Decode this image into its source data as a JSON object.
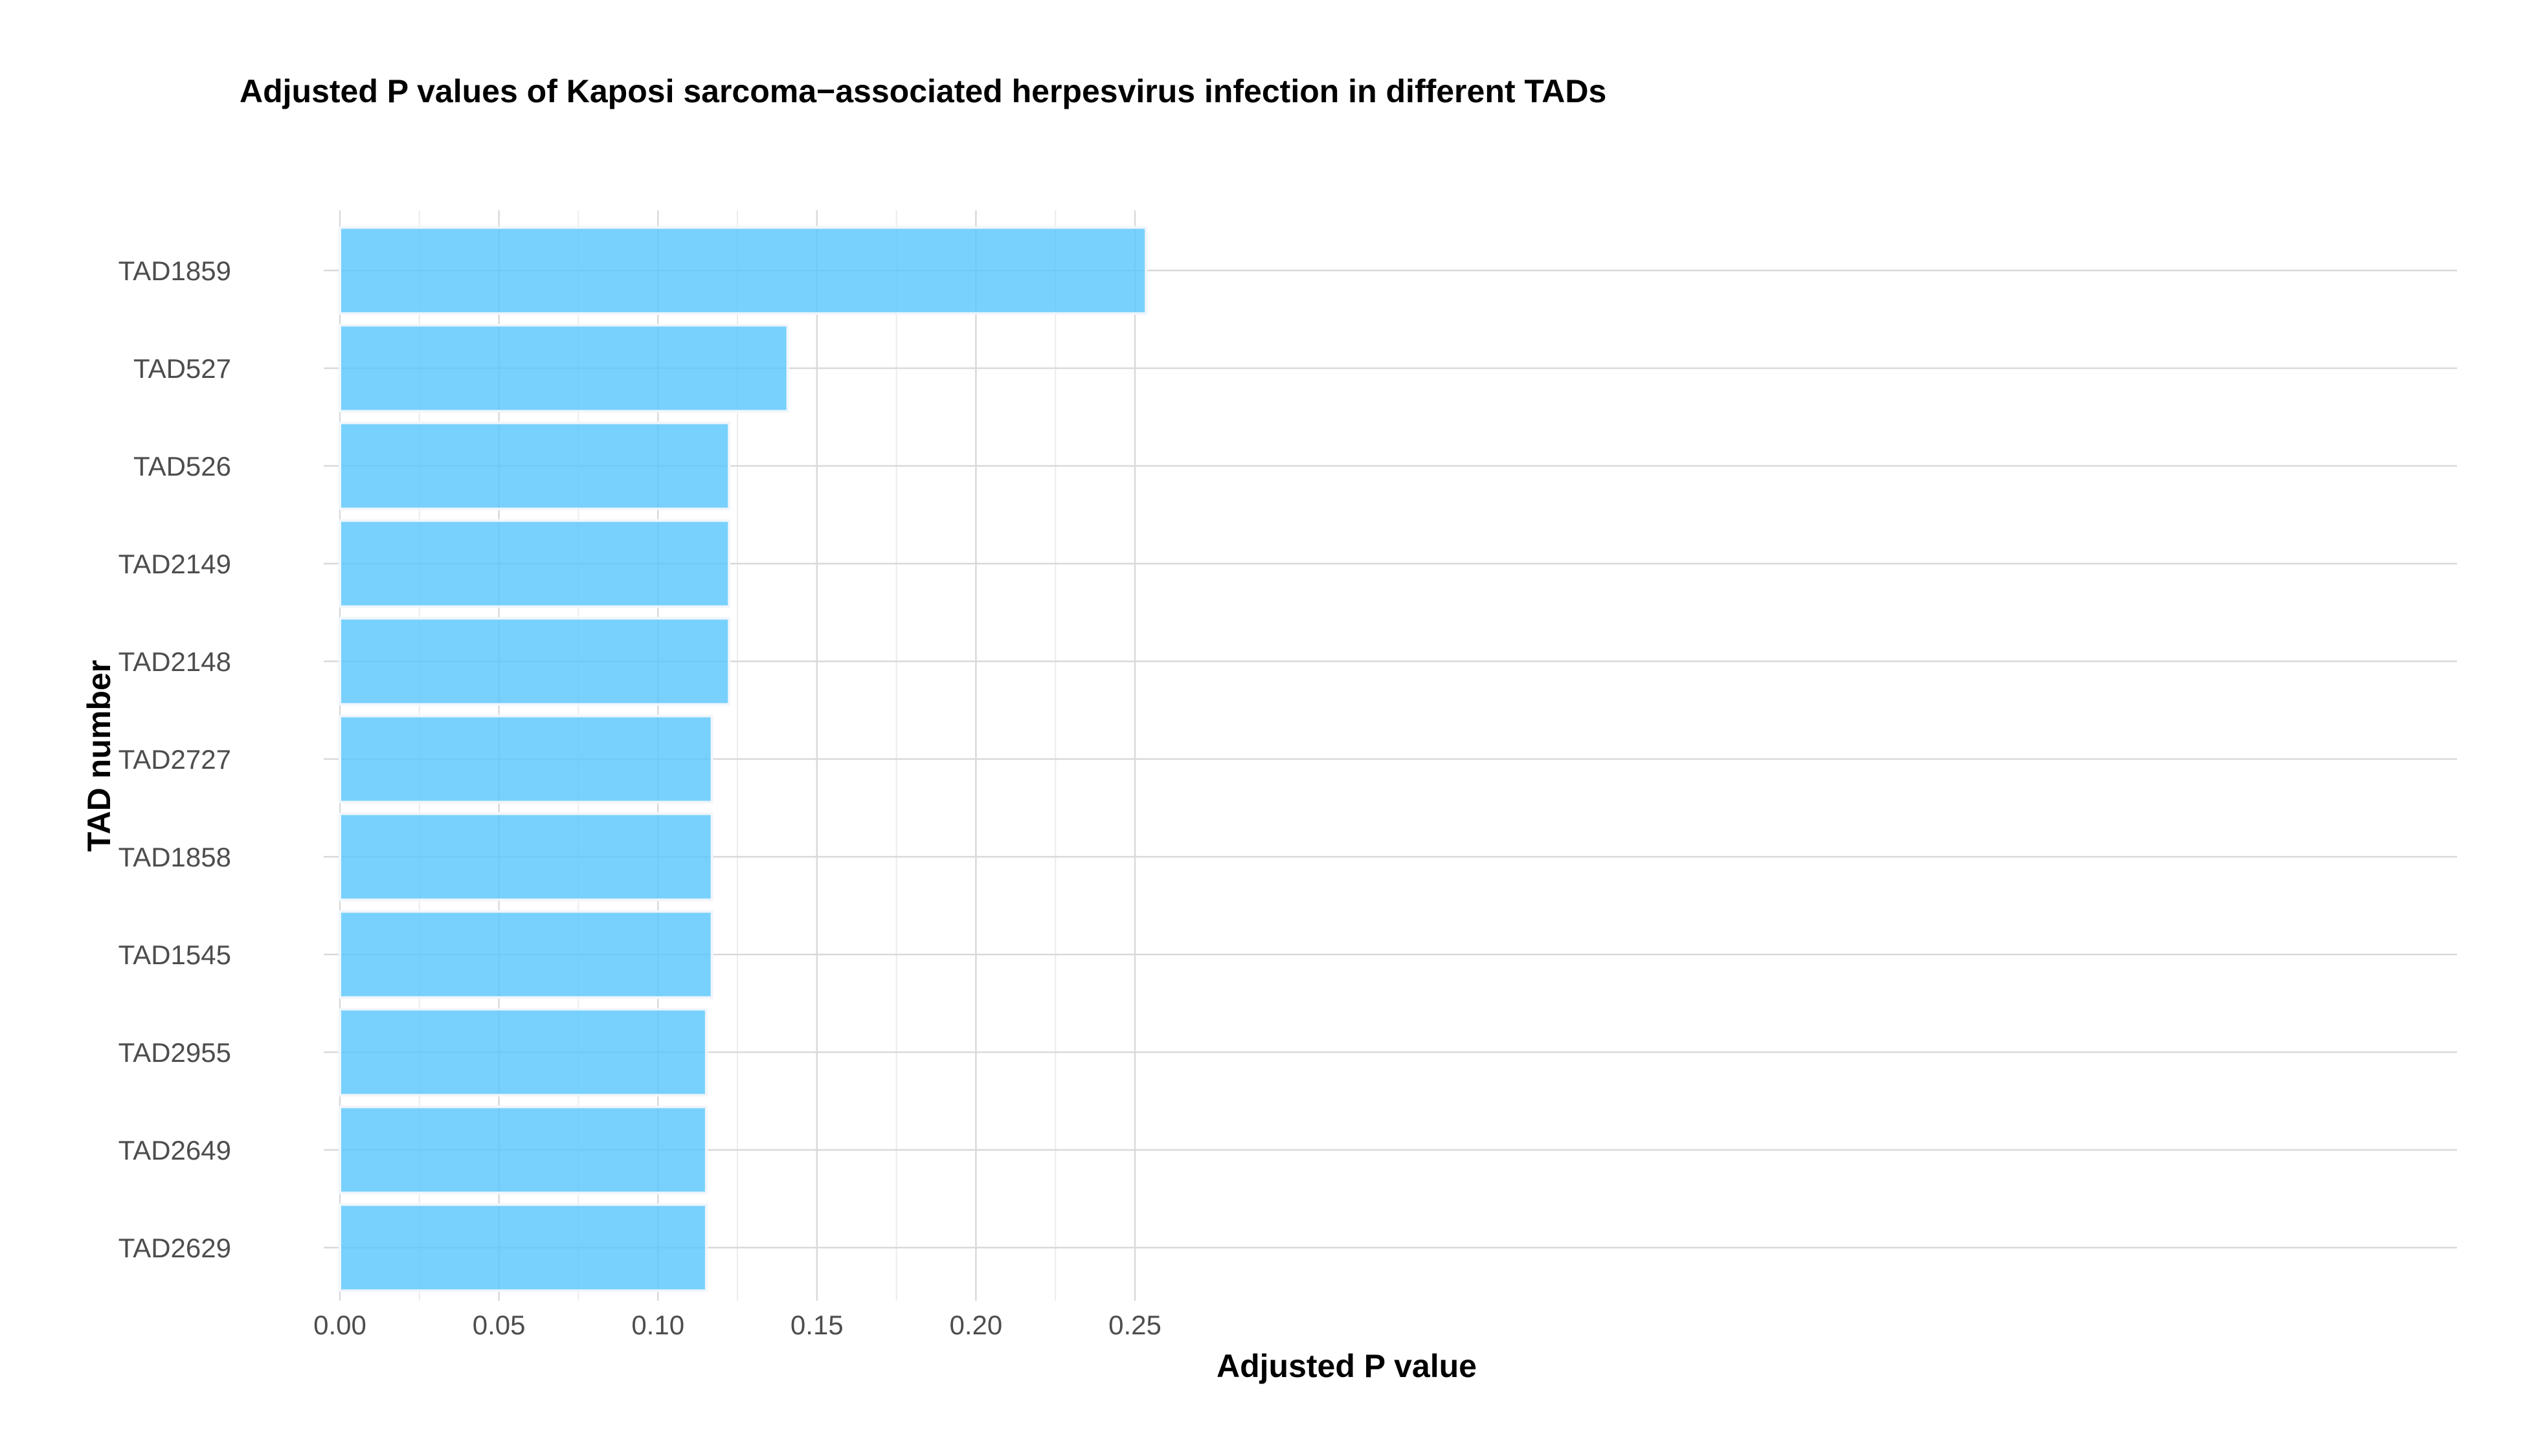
{
  "chart_data": {
    "type": "bar",
    "orientation": "horizontal",
    "title": "Adjusted P values of Kaposi sarcoma−associated herpesvirus infection in different TADs",
    "xlabel": "Adjusted P value",
    "ylabel": "TAD number",
    "categories": [
      "TAD1859",
      "TAD527",
      "TAD526",
      "TAD2149",
      "TAD2148",
      "TAD2727",
      "TAD1858",
      "TAD1545",
      "TAD2955",
      "TAD2649",
      "TAD2629"
    ],
    "values": [
      0.2535,
      0.1408,
      0.1224,
      0.1224,
      0.1224,
      0.117,
      0.117,
      0.117,
      0.1152,
      0.1152,
      0.1152
    ],
    "xlim": [
      0,
      0.2665
    ],
    "xticks": [
      "0.00",
      "0.05",
      "0.10",
      "0.15",
      "0.20",
      "0.25"
    ],
    "xtick_values": [
      0,
      0.05,
      0.1,
      0.15,
      0.2,
      0.25
    ],
    "grid": true,
    "legend": "none",
    "colors": {
      "bar": "#56c5fc",
      "bar_edge": "#f0f6fb",
      "grid_major": "#d9d9d9",
      "grid_minor": "#ececec"
    }
  }
}
